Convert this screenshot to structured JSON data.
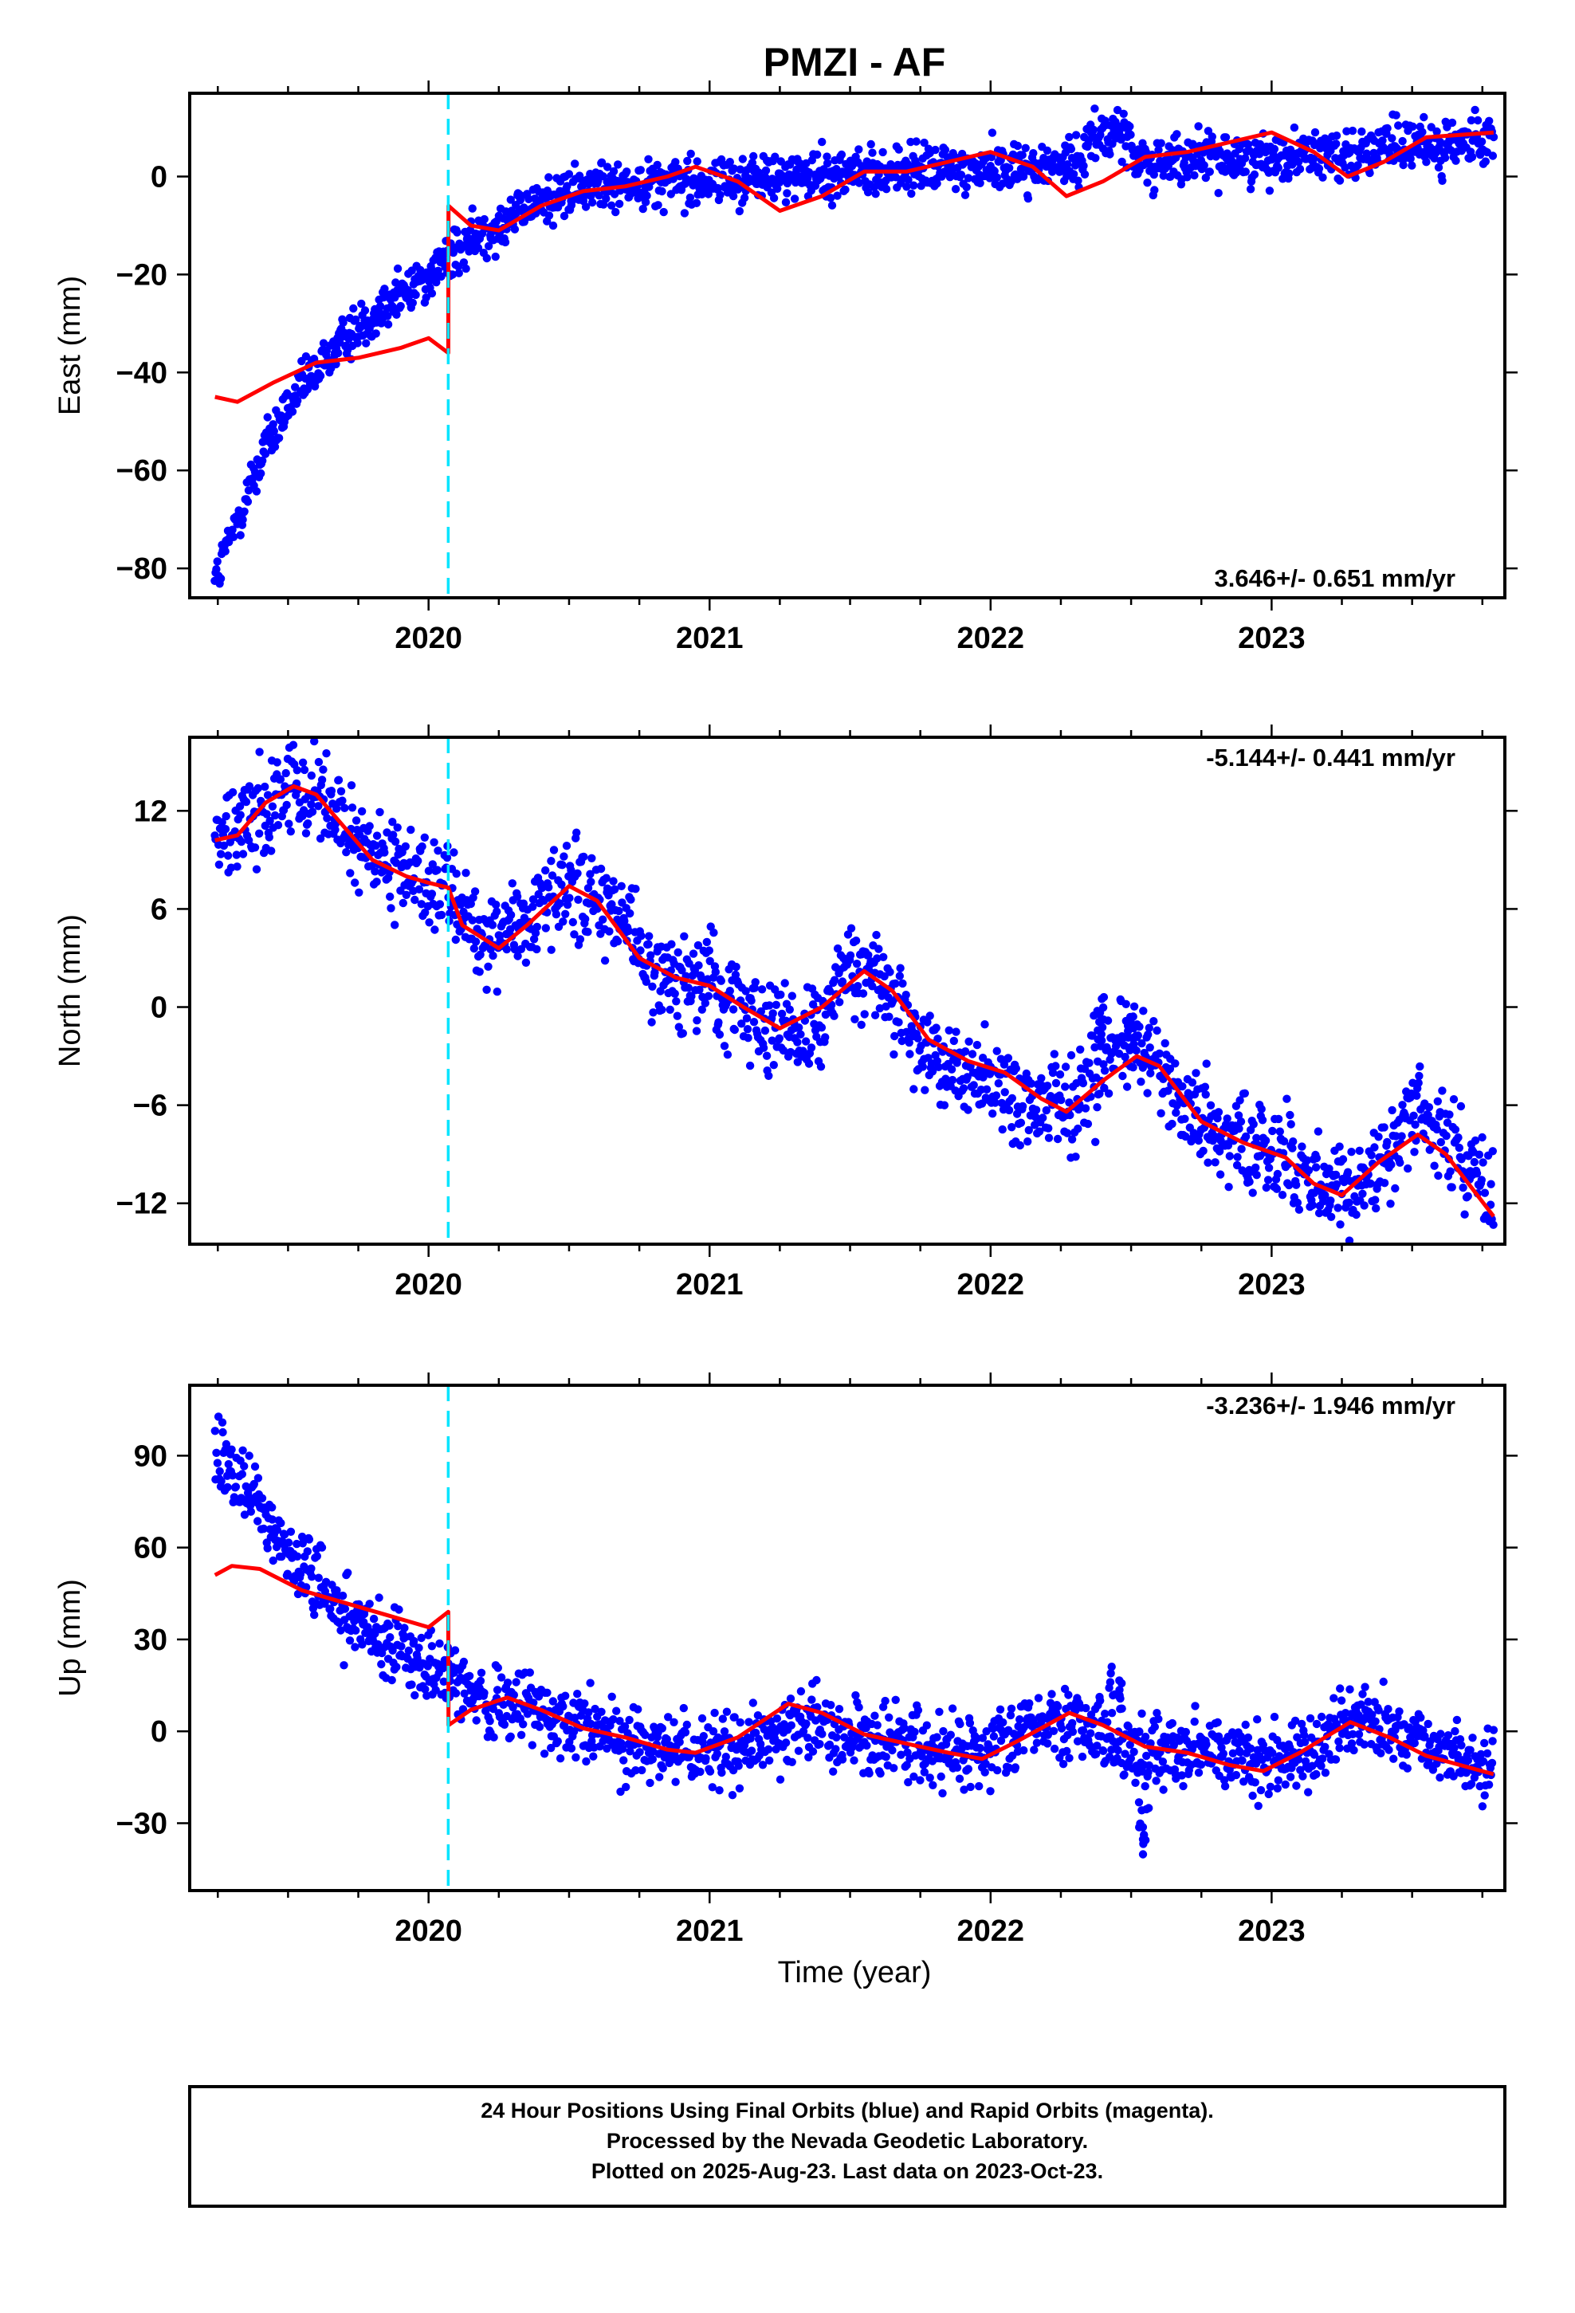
{
  "figure": {
    "title": "PMZI - AF",
    "x_axis_label": "Time (year)",
    "footer_lines": [
      "24 Hour Positions Using Final Orbits (blue) and Rapid Orbits (magenta).",
      "Processed by the Nevada Geodetic Laboratory.",
      "Plotted on 2025-Aug-23. Last data on 2023-Oct-23."
    ],
    "colors": {
      "data_points": "#0000ff",
      "model_curve": "#ff0000",
      "equipment_change_line": "#00e5ff",
      "frame": "#000000"
    }
  },
  "chart_data": [
    {
      "type": "scatter",
      "component": "East",
      "ylabel": "East (mm)",
      "rate_text": "3.646+/- 0.651 mm/yr",
      "xlim": [
        2019.15,
        2023.83
      ],
      "ylim": [
        -86,
        17
      ],
      "xticks": [
        2020,
        2021,
        2022,
        2023
      ],
      "xtick_labels": [
        "2020",
        "2021",
        "2022",
        "2023"
      ],
      "yticks": [
        0,
        -20,
        -40,
        -60,
        -80
      ],
      "ytick_labels": [
        "0",
        "−20",
        "−40",
        "−60",
        "−80"
      ],
      "step_epoch": 2020.07,
      "data_range": [
        2019.24,
        2023.79
      ],
      "obs_trend": [
        [
          2019.24,
          -83
        ],
        [
          2019.32,
          -70
        ],
        [
          2019.42,
          -55
        ],
        [
          2019.55,
          -43
        ],
        [
          2019.7,
          -33
        ],
        [
          2019.85,
          -26
        ],
        [
          2020.0,
          -20
        ],
        [
          2020.07,
          -17
        ],
        [
          2020.2,
          -11
        ],
        [
          2020.4,
          -5
        ],
        [
          2020.6,
          -2
        ],
        [
          2020.8,
          -1
        ],
        [
          2021.0,
          -1
        ],
        [
          2021.3,
          0
        ],
        [
          2021.6,
          1
        ],
        [
          2022.0,
          2
        ],
        [
          2022.2,
          2
        ],
        [
          2022.33,
          3
        ],
        [
          2022.34,
          9
        ],
        [
          2022.5,
          8
        ],
        [
          2022.51,
          3
        ],
        [
          2023.0,
          4
        ],
        [
          2023.5,
          6
        ],
        [
          2023.79,
          7
        ]
      ],
      "scatter_sd": 2.5,
      "num_points": 1600,
      "model_curve": [
        [
          2019.24,
          -45
        ],
        [
          2019.32,
          -46
        ],
        [
          2019.45,
          -42
        ],
        [
          2019.6,
          -38
        ],
        [
          2019.75,
          -37
        ],
        [
          2019.9,
          -35
        ],
        [
          2020.0,
          -33
        ],
        [
          2020.07,
          -36
        ],
        [
          2020.071,
          -6
        ],
        [
          2020.15,
          -10
        ],
        [
          2020.25,
          -11
        ],
        [
          2020.4,
          -6
        ],
        [
          2020.55,
          -3
        ],
        [
          2020.7,
          -2
        ],
        [
          2020.85,
          0
        ],
        [
          2020.95,
          2
        ],
        [
          2021.1,
          -1
        ],
        [
          2021.25,
          -7
        ],
        [
          2021.4,
          -4
        ],
        [
          2021.55,
          1
        ],
        [
          2021.7,
          1
        ],
        [
          2021.85,
          3
        ],
        [
          2022.0,
          5
        ],
        [
          2022.15,
          2
        ],
        [
          2022.27,
          -4
        ],
        [
          2022.4,
          -1
        ],
        [
          2022.55,
          4
        ],
        [
          2022.7,
          5
        ],
        [
          2022.85,
          7
        ],
        [
          2023.0,
          9
        ],
        [
          2023.15,
          5
        ],
        [
          2023.27,
          0
        ],
        [
          2023.4,
          3
        ],
        [
          2023.55,
          8
        ],
        [
          2023.79,
          9
        ]
      ]
    },
    {
      "type": "scatter",
      "component": "North",
      "ylabel": "North (mm)",
      "rate_text": "-5.144+/- 0.441 mm/yr",
      "xlim": [
        2019.15,
        2023.83
      ],
      "ylim": [
        -14.5,
        16.5
      ],
      "xticks": [
        2020,
        2021,
        2022,
        2023
      ],
      "xtick_labels": [
        "2020",
        "2021",
        "2022",
        "2023"
      ],
      "yticks": [
        12,
        6,
        0,
        -6,
        -12
      ],
      "ytick_labels": [
        "12",
        "6",
        "0",
        "−6",
        "−12"
      ],
      "step_epoch": 2020.07,
      "data_range": [
        2019.24,
        2023.79
      ],
      "obs_trend": [
        [
          2019.24,
          10
        ],
        [
          2019.35,
          11.5
        ],
        [
          2019.5,
          13.5
        ],
        [
          2019.6,
          13
        ],
        [
          2019.75,
          10
        ],
        [
          2019.9,
          8
        ],
        [
          2020.07,
          7
        ],
        [
          2020.2,
          4
        ],
        [
          2020.35,
          5
        ],
        [
          2020.5,
          7.5
        ],
        [
          2020.65,
          6
        ],
        [
          2020.8,
          2
        ],
        [
          2021.0,
          1.5
        ],
        [
          2021.2,
          -1
        ],
        [
          2021.35,
          -1.5
        ],
        [
          2021.5,
          2
        ],
        [
          2021.6,
          2
        ],
        [
          2021.75,
          -2.5
        ],
        [
          2021.95,
          -4
        ],
        [
          2022.15,
          -6
        ],
        [
          2022.3,
          -6
        ],
        [
          2022.45,
          -2
        ],
        [
          2022.55,
          -3
        ],
        [
          2022.7,
          -6.5
        ],
        [
          2022.9,
          -8.5
        ],
        [
          2023.05,
          -9
        ],
        [
          2023.2,
          -11
        ],
        [
          2023.35,
          -10.5
        ],
        [
          2023.5,
          -6
        ],
        [
          2023.6,
          -8
        ],
        [
          2023.79,
          -11.5
        ]
      ],
      "scatter_sd": 1.4,
      "num_points": 1600,
      "model_curve": [
        [
          2019.24,
          10.2
        ],
        [
          2019.32,
          10.5
        ],
        [
          2019.42,
          12.5
        ],
        [
          2019.52,
          13.5
        ],
        [
          2019.6,
          13
        ],
        [
          2019.7,
          11
        ],
        [
          2019.8,
          9
        ],
        [
          2019.92,
          8
        ],
        [
          2020.0,
          7.6
        ],
        [
          2020.07,
          7.3
        ],
        [
          2020.12,
          5
        ],
        [
          2020.25,
          3.6
        ],
        [
          2020.35,
          5
        ],
        [
          2020.5,
          7.4
        ],
        [
          2020.6,
          6.5
        ],
        [
          2020.75,
          3
        ],
        [
          2020.88,
          1.8
        ],
        [
          2021.0,
          1.3
        ],
        [
          2021.12,
          0
        ],
        [
          2021.25,
          -1.3
        ],
        [
          2021.4,
          0
        ],
        [
          2021.55,
          2.2
        ],
        [
          2021.65,
          1
        ],
        [
          2021.78,
          -2
        ],
        [
          2021.92,
          -3.3
        ],
        [
          2022.05,
          -4
        ],
        [
          2022.18,
          -5.6
        ],
        [
          2022.27,
          -6.4
        ],
        [
          2022.4,
          -4.5
        ],
        [
          2022.52,
          -3
        ],
        [
          2022.6,
          -3.6
        ],
        [
          2022.75,
          -7
        ],
        [
          2022.9,
          -8.3
        ],
        [
          2023.05,
          -9.2
        ],
        [
          2023.15,
          -10.8
        ],
        [
          2023.25,
          -11.5
        ],
        [
          2023.38,
          -9.5
        ],
        [
          2023.52,
          -7.8
        ],
        [
          2023.62,
          -9
        ],
        [
          2023.79,
          -12.8
        ]
      ],
      "scatter_sd_note": "",
      "spikes": [
        [
          2022.38,
          4
        ],
        [
          2022.5,
          2
        ]
      ]
    },
    {
      "type": "scatter",
      "component": "Up",
      "ylabel": "Up (mm)",
      "rate_text": "-3.236+/- 1.946 mm/yr",
      "xlim": [
        2019.15,
        2023.83
      ],
      "ylim": [
        -52,
        113
      ],
      "xticks": [
        2020,
        2021,
        2022,
        2023
      ],
      "xtick_labels": [
        "2020",
        "2021",
        "2022",
        "2023"
      ],
      "yticks": [
        90,
        60,
        30,
        0,
        -30
      ],
      "ytick_labels": [
        "90",
        "60",
        "30",
        "0",
        "−30"
      ],
      "step_epoch": 2020.07,
      "data_range": [
        2019.24,
        2023.79
      ],
      "obs_trend": [
        [
          2019.24,
          95
        ],
        [
          2019.35,
          80
        ],
        [
          2019.5,
          58
        ],
        [
          2019.65,
          42
        ],
        [
          2019.8,
          32
        ],
        [
          2019.95,
          24
        ],
        [
          2020.07,
          18
        ],
        [
          2020.2,
          10
        ],
        [
          2020.4,
          6
        ],
        [
          2020.6,
          0
        ],
        [
          2020.8,
          -6
        ],
        [
          2021.0,
          -8
        ],
        [
          2021.2,
          -2
        ],
        [
          2021.35,
          4
        ],
        [
          2021.55,
          -2
        ],
        [
          2021.8,
          -6
        ],
        [
          2022.0,
          -6
        ],
        [
          2022.2,
          4
        ],
        [
          2022.35,
          2
        ],
        [
          2022.5,
          -8
        ],
        [
          2022.7,
          -6
        ],
        [
          2022.9,
          -10
        ],
        [
          2023.1,
          -8
        ],
        [
          2023.3,
          4
        ],
        [
          2023.55,
          -5
        ],
        [
          2023.79,
          -12
        ]
      ],
      "scatter_sd": 6,
      "num_points": 1600,
      "model_curve": [
        [
          2019.24,
          51
        ],
        [
          2019.3,
          54
        ],
        [
          2019.4,
          53
        ],
        [
          2019.55,
          46
        ],
        [
          2019.7,
          42
        ],
        [
          2019.85,
          38
        ],
        [
          2020.0,
          34
        ],
        [
          2020.07,
          39
        ],
        [
          2020.071,
          2
        ],
        [
          2020.15,
          7
        ],
        [
          2020.28,
          11
        ],
        [
          2020.4,
          7
        ],
        [
          2020.55,
          1
        ],
        [
          2020.7,
          -2
        ],
        [
          2020.85,
          -6
        ],
        [
          2020.95,
          -7
        ],
        [
          2021.1,
          -2
        ],
        [
          2021.28,
          9
        ],
        [
          2021.4,
          6
        ],
        [
          2021.55,
          -1
        ],
        [
          2021.7,
          -4
        ],
        [
          2021.85,
          -7
        ],
        [
          2021.97,
          -9
        ],
        [
          2022.1,
          -3
        ],
        [
          2022.28,
          6
        ],
        [
          2022.4,
          2
        ],
        [
          2022.55,
          -5
        ],
        [
          2022.7,
          -7
        ],
        [
          2022.85,
          -11
        ],
        [
          2022.97,
          -13
        ],
        [
          2023.1,
          -7
        ],
        [
          2023.28,
          3
        ],
        [
          2023.42,
          -2
        ],
        [
          2023.55,
          -8
        ],
        [
          2023.79,
          -14
        ]
      ],
      "spikes": [
        [
          2022.45,
          25
        ],
        [
          2022.55,
          -35
        ]
      ]
    }
  ]
}
